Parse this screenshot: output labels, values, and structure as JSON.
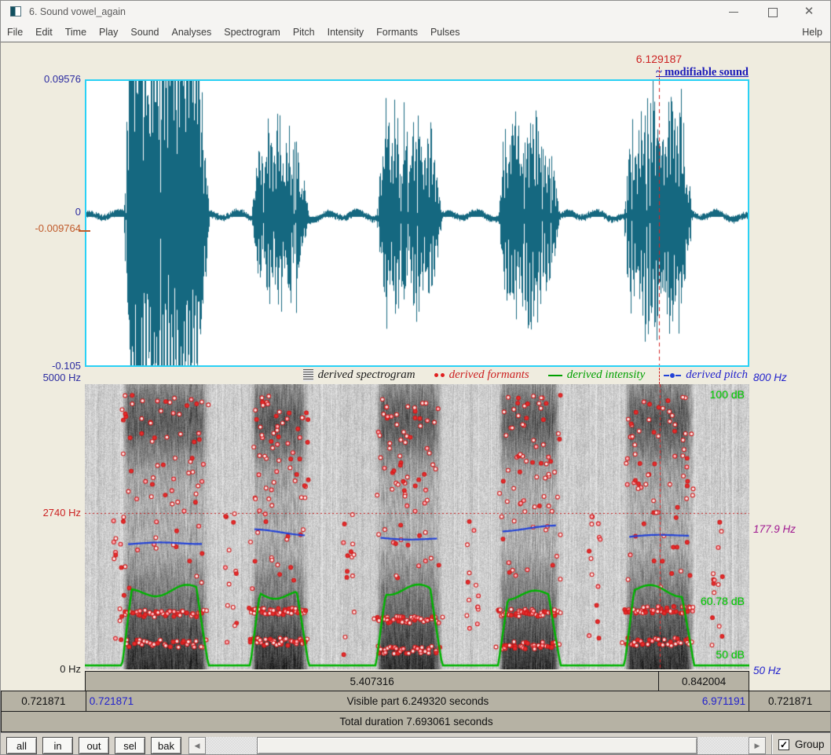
{
  "window": {
    "title": "6. Sound vowel_again"
  },
  "menu": {
    "items": [
      "File",
      "Edit",
      "Time",
      "Play",
      "Sound",
      "Analyses",
      "Spectrogram",
      "Pitch",
      "Intensity",
      "Formants",
      "Pulses"
    ],
    "help": "Help"
  },
  "wave": {
    "cursor_time": "6.129187",
    "modifiable": "~ modifiable sound",
    "amp_max": "0.09576",
    "amp_zero": "0",
    "amp_at_cursor": "-0.009764",
    "amp_min": "-0.105"
  },
  "legend": {
    "spectrogram": "derived spectrogram",
    "formants": "derived formants",
    "intensity": "derived intensity",
    "pitch": "derived pitch"
  },
  "spec": {
    "freq_top_left": "5000 Hz",
    "freq_cursor_left": "2740 Hz",
    "freq_bottom_left": "0 Hz",
    "pitch_top_right": "800 Hz",
    "pitch_at_cursor_right": "177.9 Hz",
    "pitch_bottom_right": "50 Hz",
    "db_top": "100 dB",
    "db_at_cursor": "60.78 dB",
    "db_bottom": "50 dB"
  },
  "times": {
    "sel_to_cursor": "5.407316",
    "cursor_to_end": "0.842004",
    "left_outside": "0.721871",
    "visible_start": "0.721871",
    "visible_part": "Visible part 6.249320 seconds",
    "visible_end": "6.971191",
    "right_outside": "0.721871",
    "total": "Total duration 7.693061 seconds"
  },
  "controls": {
    "buttons": [
      "all",
      "in",
      "out",
      "sel",
      "bak"
    ],
    "group": "Group",
    "group_checked": true
  },
  "colors": {
    "accent_cyan": "#29d1f5",
    "waveform": "#156880",
    "red": "#cc2222",
    "cursor_value": "#c05a2a",
    "blue": "#2222cc",
    "green": "#00b400",
    "purple": "#a01890",
    "panel_bg": "#efecdf",
    "row_bg": "#b6b2a4"
  },
  "audio": {
    "visible_start_s": 0.721871,
    "visible_end_s": 6.971191,
    "total_s": 7.693061,
    "cursor_s": 6.129187,
    "amp_max": 0.09576,
    "amp_min": -0.105,
    "amp_at_cursor": -0.009764,
    "freq_max_hz": 5000,
    "freq_at_cursor_hz": 2740,
    "pitch_range_hz": [
      50,
      800
    ],
    "pitch_at_cursor_hz": 177.9,
    "intensity_range_db": [
      50,
      100
    ],
    "intensity_at_cursor_db": 60.78,
    "bursts": [
      {
        "start": 0.056,
        "end": 0.186,
        "amp": 0.17
      },
      {
        "start": 0.249,
        "end": 0.337,
        "amp": 0.062
      },
      {
        "start": 0.438,
        "end": 0.538,
        "amp": 0.068
      },
      {
        "start": 0.622,
        "end": 0.716,
        "amp": 0.072
      },
      {
        "start": 0.812,
        "end": 0.917,
        "amp": 0.085
      }
    ]
  }
}
